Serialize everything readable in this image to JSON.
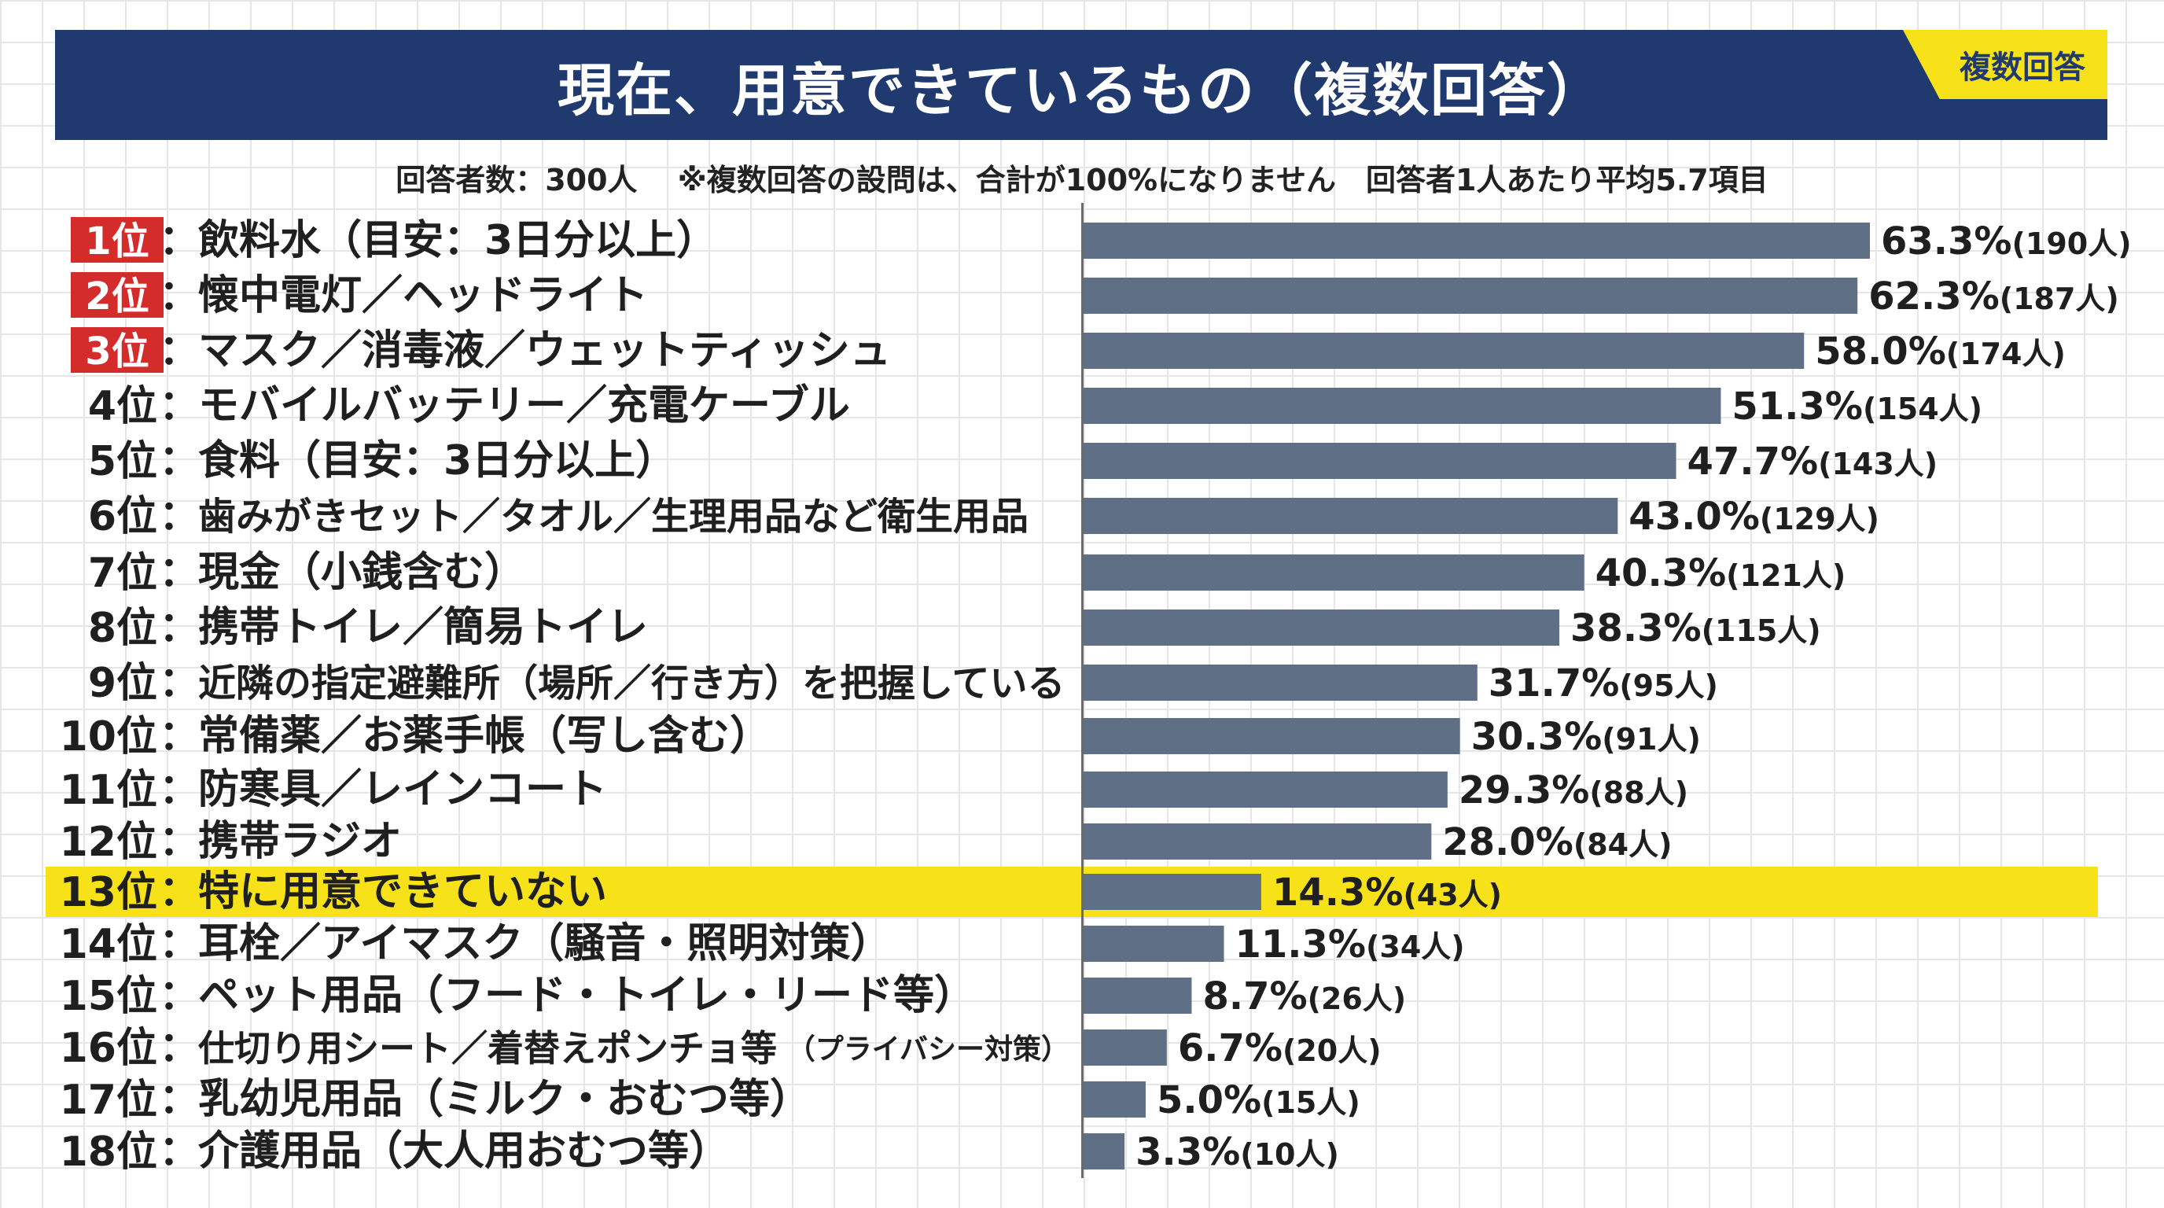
{
  "header": {
    "title": "現在、用意できているもの（複数回答）",
    "badge": "複数回答"
  },
  "subtitle": "回答者数：300人　 ※複数回答の設問は、合計が100%になりません　回答者1人あたり平均5.7項目",
  "colors": {
    "header_bg": "#203a70",
    "bar": "#5e6f86",
    "rank_badge": "#d42b2b",
    "highlight": "#f7e21a"
  },
  "chart_data": {
    "type": "bar",
    "orientation": "horizontal",
    "title": "現在、用意できているもの（複数回答）",
    "xlim": [
      0,
      100
    ],
    "grid": false,
    "highlighted_rank": "13位",
    "categories": [
      "飲料水（目安：3日分以上）",
      "懐中電灯／ヘッドライト",
      "マスク／消毒液／ウェットティッシュ",
      "モバイルバッテリー／充電ケーブル",
      "食料（目安：3日分以上）",
      "歯みがきセット／タオル／生理用品など衛生用品",
      "現金（小銭含む）",
      "携帯トイレ／簡易トイレ",
      "近隣の指定避難所（場所／行き方）を把握している",
      "常備薬／お薬手帳（写し含む）",
      "防寒具／レインコート",
      "携帯ラジオ",
      "特に用意できていない",
      "耳栓／アイマスク（騒音・照明対策）",
      "ペット用品（フード・トイレ・リード等）",
      "仕切り用シート／着替えポンチョ等",
      "乳幼児用品（ミルク・おむつ等）",
      "介護用品（大人用おむつ等）"
    ],
    "category_notes": [
      "",
      "",
      "",
      "",
      "",
      "",
      "",
      "",
      "",
      "",
      "",
      "",
      "",
      "",
      "",
      "（プライバシー対策）",
      "",
      ""
    ],
    "ranks": [
      "1位",
      "2位",
      "3位",
      "4位",
      "5位",
      "6位",
      "7位",
      "8位",
      "9位",
      "10位",
      "11位",
      "12位",
      "13位",
      "14位",
      "15位",
      "16位",
      "17位",
      "18位"
    ],
    "values": [
      63.3,
      62.3,
      58.0,
      51.3,
      47.7,
      43.0,
      40.3,
      38.3,
      31.7,
      30.3,
      29.3,
      28.0,
      14.3,
      11.3,
      8.7,
      6.7,
      5.0,
      3.3
    ],
    "value_labels": [
      "63.3%",
      "62.3%",
      "58.0%",
      "51.3%",
      "47.7%",
      "43.0%",
      "40.3%",
      "38.3%",
      "31.7%",
      "30.3%",
      "29.3%",
      "28.0%",
      "14.3%",
      "11.3%",
      "8.7%",
      "6.7%",
      "5.0%",
      "3.3%"
    ],
    "counts": [
      "(190人)",
      "(187人)",
      "(174人)",
      "(154人)",
      "(143人)",
      "(129人)",
      "(121人)",
      "(115人)",
      "(95人)",
      "(91人)",
      "(88人)",
      "(84人)",
      "(43人)",
      "(34人)",
      "(26人)",
      "(20人)",
      "(15人)",
      "(10人)"
    ]
  }
}
